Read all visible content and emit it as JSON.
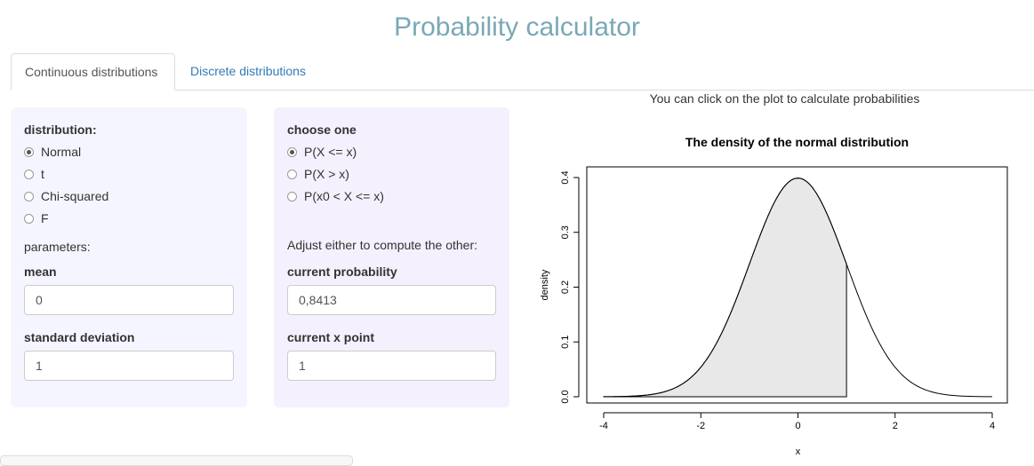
{
  "title": "Probability calculator",
  "tabs": [
    {
      "label": "Continuous distributions",
      "active": true
    },
    {
      "label": "Discrete distributions",
      "active": false
    }
  ],
  "left_panel": {
    "distribution_label": "distribution:",
    "options": [
      {
        "label": "Normal",
        "checked": true
      },
      {
        "label": "t",
        "checked": false
      },
      {
        "label": "Chi-squared",
        "checked": false
      },
      {
        "label": "F",
        "checked": false
      }
    ],
    "parameters_label": "parameters:",
    "mean_label": "mean",
    "mean_value": "0",
    "sd_label": "standard deviation",
    "sd_value": "1"
  },
  "right_panel": {
    "choose_label": "choose one",
    "options": [
      {
        "label": "P(X <= x)",
        "checked": true
      },
      {
        "label": "P(X > x)",
        "checked": false
      },
      {
        "label": "P(x0 < X <= x)",
        "checked": false
      }
    ],
    "adjust_text": "Adjust either to compute the other:",
    "prob_label": "current probability",
    "prob_value": "0,8413",
    "x_label": "current x point",
    "x_value": "1"
  },
  "plot_hint": "You can click on the plot to calculate probabilities",
  "chart_data": {
    "type": "area",
    "title": "The density of the normal distribution",
    "xlabel": "x",
    "ylabel": "density",
    "xlim": [
      -4,
      4
    ],
    "ylim": [
      0,
      0.4
    ],
    "x_ticks": [
      "-4",
      "-2",
      "0",
      "2",
      "4"
    ],
    "y_ticks": [
      "0.0",
      "0.1",
      "0.2",
      "0.3",
      "0.4"
    ],
    "mean": 0,
    "sd": 1,
    "shaded_upper_x": 1,
    "fill_color": "#e8e8e8"
  }
}
